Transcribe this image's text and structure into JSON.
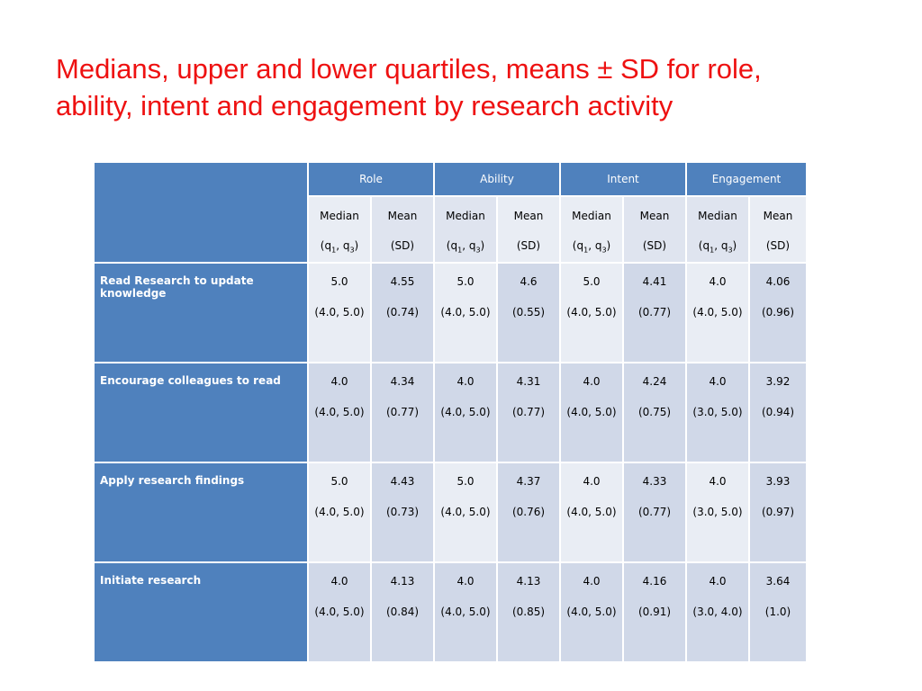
{
  "title": {
    "line1": "Medians, upper and lower quartiles, means ± SD for role,",
    "line2": "ability, intent and engagement by research activity"
  },
  "table": {
    "groups": [
      "Role",
      "Ability",
      "Intent",
      "Engagement"
    ],
    "subheaders": {
      "median_top": "Median",
      "median_bottom_prefix": "(q",
      "q1_sub": "1",
      "sep": ", q",
      "q3_sub": "3",
      "median_bottom_suffix": ")",
      "mean_top": "Mean",
      "mean_bottom": "(SD)"
    },
    "rows": [
      {
        "label": "Read Research to update knowledge",
        "cells": [
          {
            "median": "5.0",
            "quartiles": "(4.0, 5.0)",
            "mean": "4.55",
            "sd": "(0.74)"
          },
          {
            "median": "5.0",
            "quartiles": "(4.0, 5.0)",
            "mean": "4.6",
            "sd": "(0.55)"
          },
          {
            "median": "5.0",
            "quartiles": "(4.0, 5.0)",
            "mean": "4.41",
            "sd": "(0.77)"
          },
          {
            "median": "4.0",
            "quartiles": "(4.0, 5.0)",
            "mean": "4.06",
            "sd": "(0.96)"
          }
        ]
      },
      {
        "label": "Encourage colleagues to read",
        "cells": [
          {
            "median": "4.0",
            "quartiles": "(4.0, 5.0)",
            "mean": "4.34",
            "sd": "(0.77)"
          },
          {
            "median": "4.0",
            "quartiles": "(4.0, 5.0)",
            "mean": "4.31",
            "sd": "(0.77)"
          },
          {
            "median": "4.0",
            "quartiles": "(4.0, 5.0)",
            "mean": "4.24",
            "sd": "(0.75)"
          },
          {
            "median": "4.0",
            "quartiles": "(3.0, 5.0)",
            "mean": "3.92",
            "sd": "(0.94)"
          }
        ]
      },
      {
        "label": "Apply research findings",
        "cells": [
          {
            "median": "5.0",
            "quartiles": "(4.0, 5.0)",
            "mean": "4.43",
            "sd": "(0.73)"
          },
          {
            "median": "5.0",
            "quartiles": "(4.0, 5.0)",
            "mean": "4.37",
            "sd": "(0.76)"
          },
          {
            "median": "4.0",
            "quartiles": "(4.0, 5.0)",
            "mean": "4.33",
            "sd": "(0.77)"
          },
          {
            "median": "4.0",
            "quartiles": "(3.0, 5.0)",
            "mean": "3.93",
            "sd": "(0.97)"
          }
        ]
      },
      {
        "label": "Initiate research",
        "cells": [
          {
            "median": "4.0",
            "quartiles": "(4.0, 5.0)",
            "mean": "4.13",
            "sd": "(0.84)"
          },
          {
            "median": "4.0",
            "quartiles": "(4.0, 5.0)",
            "mean": "4.13",
            "sd": "(0.85)"
          },
          {
            "median": "4.0",
            "quartiles": "(4.0, 5.0)",
            "mean": "4.16",
            "sd": "(0.91)"
          },
          {
            "median": "4.0",
            "quartiles": "(3.0, 4.0)",
            "mean": "3.64",
            "sd": "(1.0)"
          }
        ]
      }
    ]
  },
  "colors": {
    "title": "#ee1111",
    "header_blue": "#4f81bd",
    "cell_light": "#e9edf4",
    "cell_dark": "#d0d8e8"
  }
}
